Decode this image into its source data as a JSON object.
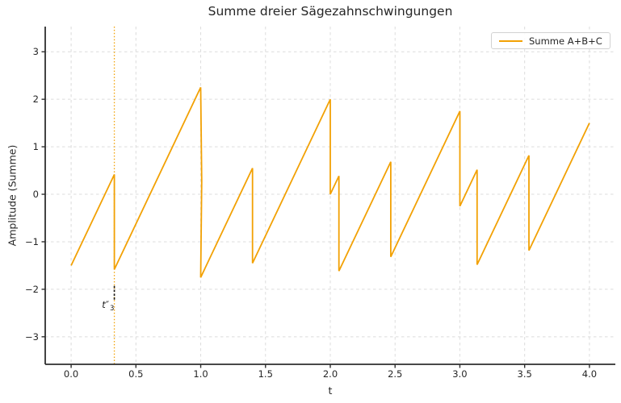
{
  "figure": {
    "title": "Summe dreier Sägezahnschwingungen",
    "xlabel": "t",
    "ylabel": "Amplitude (Summe)",
    "legend": {
      "label": "Summe A+B+C"
    },
    "annotation": {
      "main": "t″",
      "sub": "3"
    }
  },
  "colors": {
    "series_orange": "#F2A104",
    "grid": "#dcdcdc",
    "spine": "#2e2e2e",
    "text": "#262626",
    "annotation_marker": "#141414",
    "background": "#ffffff"
  },
  "chart_data": {
    "type": "line",
    "title": "Summe dreier Sägezahnschwingungen",
    "xlabel": "t",
    "ylabel": "Amplitude (Summe)",
    "xlim": [
      -0.2,
      4.2
    ],
    "ylim": [
      -3.58,
      3.53
    ],
    "xticks": [
      0.0,
      0.5,
      1.0,
      1.5,
      2.0,
      2.5,
      3.0,
      3.5,
      4.0
    ],
    "xtick_labels": [
      "0.0",
      "0.5",
      "1.0",
      "1.5",
      "2.0",
      "2.5",
      "3.0",
      "3.5",
      "4.0"
    ],
    "yticks": [
      -3,
      -2,
      -1,
      0,
      1,
      2,
      3
    ],
    "ytick_labels": [
      "−3",
      "−2",
      "−1",
      "0",
      "1",
      "2",
      "3"
    ],
    "grid": true,
    "grid_style": "dashed",
    "legend_position": "upper right",
    "series": [
      {
        "name": "Summe A+B+C",
        "color": "#F2A104",
        "line_width": 1.8,
        "points": [
          [
            0.0,
            -1.5
          ],
          [
            0.3333,
            0.4167
          ],
          [
            0.3333,
            -1.5833
          ],
          [
            1.0,
            2.25
          ],
          [
            1.008,
            0.27
          ],
          [
            1.0,
            -1.75
          ],
          [
            1.4,
            0.55
          ],
          [
            1.4,
            -1.45
          ],
          [
            2.0,
            2.0
          ],
          [
            2.0,
            0.0
          ],
          [
            2.0667,
            0.3833
          ],
          [
            2.0667,
            -1.6167
          ],
          [
            2.4667,
            0.6833
          ],
          [
            2.4667,
            -1.3167
          ],
          [
            3.0,
            1.75
          ],
          [
            3.0,
            -0.25
          ],
          [
            3.1333,
            0.5167
          ],
          [
            3.1333,
            -1.4833
          ],
          [
            3.5333,
            0.8167
          ],
          [
            3.5333,
            -1.1833
          ],
          [
            4.0,
            1.5
          ]
        ]
      }
    ],
    "vline": {
      "t": 0.3333,
      "color": "#F2A104",
      "style": "dotted"
    },
    "marker_segment": {
      "t": 0.3333,
      "y_from": -1.93,
      "y_to": -2.25,
      "color": "#141414",
      "style": "dashed"
    },
    "annotation": {
      "text": "t″3",
      "t": 0.3,
      "y": -2.35
    }
  }
}
